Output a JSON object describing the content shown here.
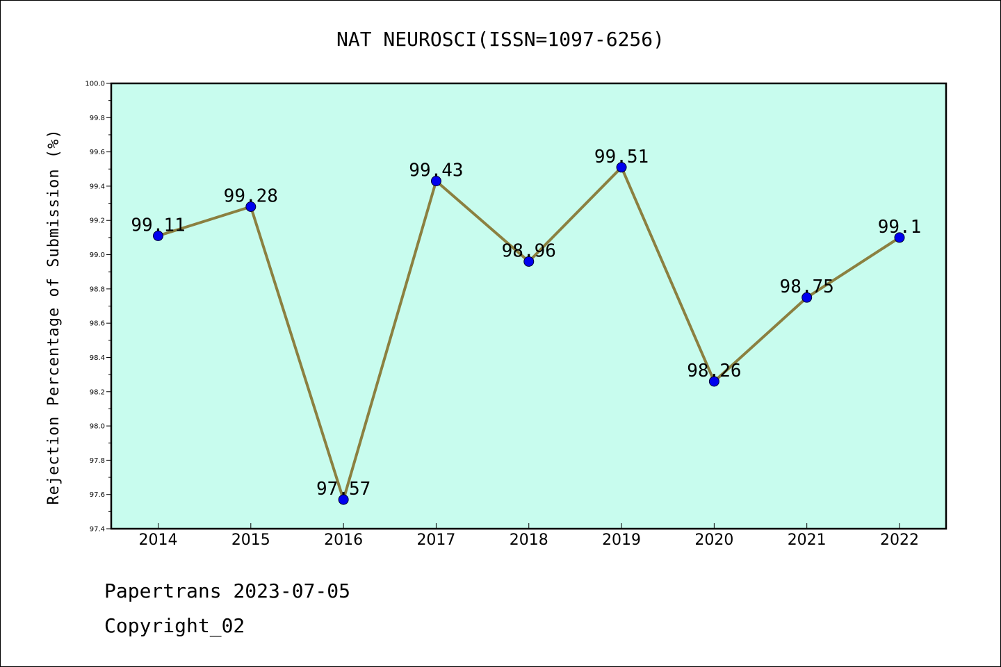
{
  "chart_data": {
    "type": "line",
    "title": "NAT NEUROSCI(ISSN=1097-6256)",
    "xlabel": "",
    "ylabel": "Rejection Percentage of Submission (%)",
    "categories": [
      "2014",
      "2015",
      "2016",
      "2017",
      "2018",
      "2019",
      "2020",
      "2021",
      "2022"
    ],
    "values": [
      99.11,
      99.28,
      97.57,
      99.43,
      98.96,
      99.51,
      98.26,
      98.75,
      99.1
    ],
    "data_labels": [
      "99.11",
      "99.28",
      "97.57",
      "99.43",
      "98.96",
      "99.51",
      "98.26",
      "98.75",
      "99.1"
    ],
    "ylim": [
      97.4,
      100.0
    ],
    "yticks": [
      "97.4",
      "97.6",
      "97.8",
      "98.0",
      "98.2",
      "98.4",
      "98.6",
      "98.8",
      "99.0",
      "99.2",
      "99.4",
      "99.6",
      "99.8",
      "100.0"
    ],
    "grid": false,
    "legend": "none",
    "colors": {
      "plot_background": "#c8fcee",
      "line": "#8b8040",
      "marker": "#0000ee",
      "axis": "#000000"
    }
  },
  "footer": {
    "line1": "Papertrans 2023-07-05",
    "line2": "Copyright_02"
  }
}
